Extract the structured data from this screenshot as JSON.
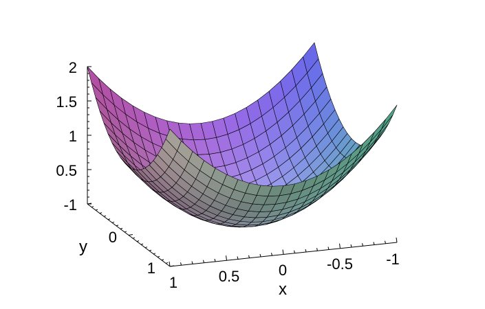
{
  "chart_data": {
    "type": "surface",
    "function": "z = x^2 + y^2",
    "title": "",
    "xlabel": "x",
    "ylabel": "y",
    "zlabel": "",
    "xlim": [
      -1,
      1
    ],
    "ylim": [
      -1,
      1
    ],
    "zlim": [
      0,
      2
    ],
    "x_ticks": [
      "1",
      "0.5",
      "0",
      "-0.5",
      "-1"
    ],
    "y_ticks": [
      "-1",
      "0",
      "1"
    ],
    "z_ticks": [
      "2",
      "1.5",
      "1",
      "0.5"
    ],
    "grid_lines_per_axis": 21,
    "colors": {
      "corner_x_neg_y_neg": "#6f6fff",
      "corner_x_neg_y_pos": "#7affd0",
      "corner_x_pos_y_neg": "#ff6fe6",
      "corner_x_pos_y_pos": "#fff4e6",
      "mesh_line": "#000000"
    }
  }
}
